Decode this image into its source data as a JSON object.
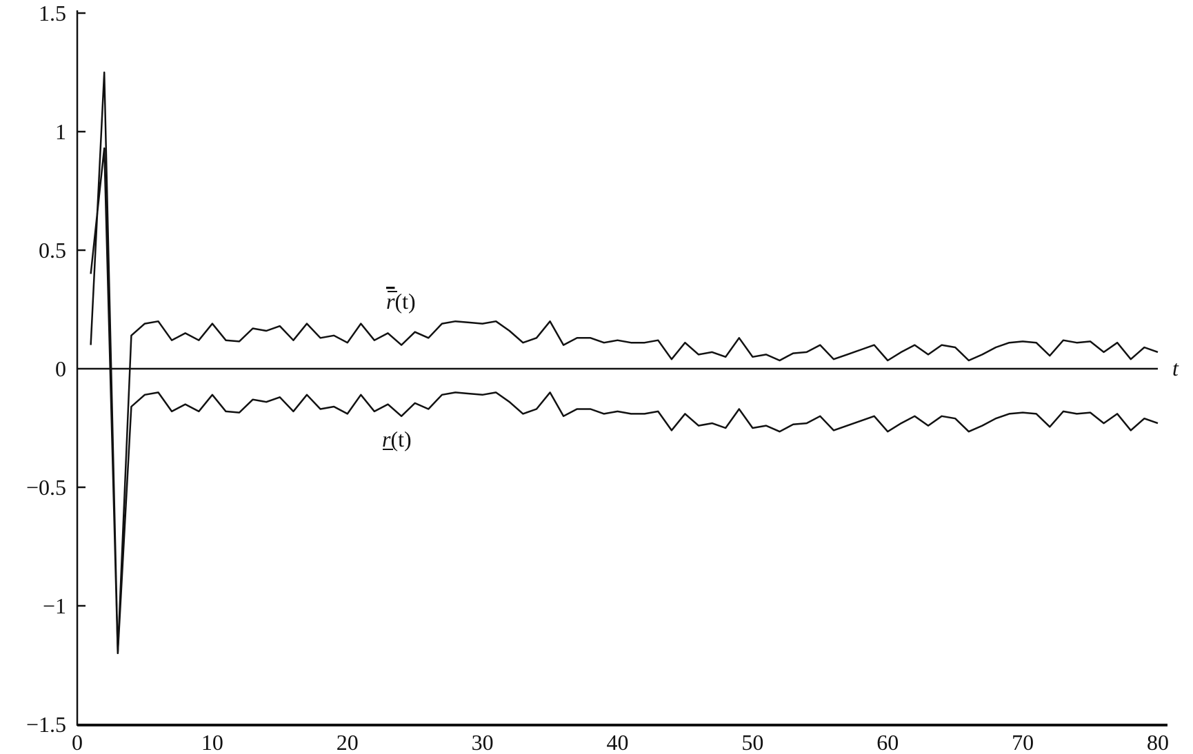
{
  "chart_data": {
    "type": "line",
    "title": "",
    "xlabel": "t",
    "ylabel": "",
    "xlim": [
      0,
      80
    ],
    "ylim": [
      -1.5,
      1.5
    ],
    "grid": false,
    "x_ticks": [
      "0",
      "10",
      "20",
      "30",
      "40",
      "50",
      "60",
      "70",
      "80"
    ],
    "y_ticks": [
      "1.5",
      "1",
      "0.5",
      "0",
      "−0.5",
      "−1",
      "−1.5"
    ],
    "y_tick_values": [
      1.5,
      1,
      0.5,
      0,
      -0.5,
      -1,
      -1.5
    ],
    "x_tick_values": [
      0,
      10,
      20,
      30,
      40,
      50,
      60,
      70,
      80
    ],
    "line_color": "#111111",
    "x": [
      1,
      2,
      3,
      4,
      5,
      6,
      7,
      8,
      9,
      10,
      11,
      12,
      13,
      14,
      15,
      16,
      17,
      18,
      19,
      20,
      21,
      22,
      23,
      24,
      25,
      26,
      27,
      28,
      29,
      30,
      31,
      32,
      33,
      34,
      35,
      36,
      37,
      38,
      39,
      40,
      41,
      42,
      43,
      44,
      45,
      46,
      47,
      48,
      49,
      50,
      51,
      52,
      53,
      54,
      55,
      56,
      57,
      58,
      59,
      60,
      61,
      62,
      63,
      64,
      65,
      66,
      67,
      68,
      69,
      70,
      71,
      72,
      73,
      74,
      75,
      76,
      77,
      78,
      79,
      80
    ],
    "series": [
      {
        "name": "r̅(t)",
        "label_main": "r",
        "label_suffix": "(t)",
        "values": [
          0.1,
          1.25,
          -1.2,
          0.14,
          0.19,
          0.2,
          0.12,
          0.15,
          0.12,
          0.19,
          0.12,
          0.115,
          0.17,
          0.16,
          0.18,
          0.12,
          0.19,
          0.13,
          0.14,
          0.11,
          0.19,
          0.12,
          0.15,
          0.1,
          0.155,
          0.13,
          0.19,
          0.2,
          0.195,
          0.19,
          0.2,
          0.16,
          0.11,
          0.13,
          0.2,
          0.1,
          0.13,
          0.13,
          0.11,
          0.12,
          0.11,
          0.11,
          0.12,
          0.04,
          0.11,
          0.06,
          0.07,
          0.05,
          0.13,
          0.05,
          0.06,
          0.035,
          0.065,
          0.07,
          0.1,
          0.04,
          0.06,
          0.08,
          0.1,
          0.035,
          0.07,
          0.1,
          0.06,
          0.1,
          0.09,
          0.035,
          0.06,
          0.09,
          0.11,
          0.115,
          0.11,
          0.055,
          0.12,
          0.11,
          0.115,
          0.07,
          0.11,
          0.04,
          0.09,
          0.07
        ]
      },
      {
        "name": "r̲(t)",
        "label_main": "r",
        "label_suffix": "(t)",
        "values": [
          0.4,
          0.93,
          -1.2,
          -0.16,
          -0.11,
          -0.1,
          -0.18,
          -0.15,
          -0.18,
          -0.11,
          -0.18,
          -0.185,
          -0.13,
          -0.14,
          -0.12,
          -0.18,
          -0.11,
          -0.17,
          -0.16,
          -0.19,
          -0.11,
          -0.18,
          -0.15,
          -0.2,
          -0.145,
          -0.17,
          -0.11,
          -0.1,
          -0.105,
          -0.11,
          -0.1,
          -0.14,
          -0.19,
          -0.17,
          -0.1,
          -0.2,
          -0.17,
          -0.17,
          -0.19,
          -0.18,
          -0.19,
          -0.19,
          -0.18,
          -0.26,
          -0.19,
          -0.24,
          -0.23,
          -0.25,
          -0.17,
          -0.25,
          -0.24,
          -0.265,
          -0.235,
          -0.23,
          -0.2,
          -0.26,
          -0.24,
          -0.22,
          -0.2,
          -0.265,
          -0.23,
          -0.2,
          -0.24,
          -0.2,
          -0.21,
          -0.265,
          -0.24,
          -0.21,
          -0.19,
          -0.185,
          -0.19,
          -0.245,
          -0.18,
          -0.19,
          -0.185,
          -0.23,
          -0.19,
          -0.26,
          -0.21,
          -0.23
        ]
      }
    ]
  }
}
